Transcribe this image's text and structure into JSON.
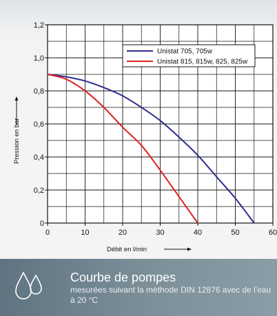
{
  "chart_data": {
    "type": "line",
    "xlabel": "Débit en l/min",
    "ylabel": "Pression en bar",
    "xlim": [
      0,
      60
    ],
    "ylim": [
      0,
      1.2
    ],
    "x_ticks": [
      "0",
      "10",
      "20",
      "30",
      "40",
      "50",
      "60"
    ],
    "y_ticks": [
      "0",
      "0,2",
      "0,4",
      "0,6",
      "0,8",
      "1,0",
      "1,2"
    ],
    "grid": true,
    "legend_position": "top-right",
    "series": [
      {
        "name": "Unistat 705, 705w",
        "color": "#2b2d8f",
        "x": [
          0,
          5,
          10,
          15,
          20,
          25,
          30,
          35,
          40,
          45,
          50,
          55
        ],
        "y": [
          0.9,
          0.885,
          0.86,
          0.82,
          0.77,
          0.7,
          0.62,
          0.52,
          0.41,
          0.28,
          0.15,
          0.0
        ]
      },
      {
        "name": "Unistat 815, 815w, 825, 825w",
        "color": "#e02020",
        "x": [
          0,
          5,
          10,
          15,
          20,
          25,
          30,
          35,
          40
        ],
        "y": [
          0.9,
          0.87,
          0.8,
          0.7,
          0.58,
          0.47,
          0.32,
          0.16,
          0.0
        ]
      }
    ]
  },
  "caption": {
    "title": "Courbe de pompes",
    "subtitle": "mesurées suivant la méthode DIN 12876 avec de l'eau à 20 °C",
    "icon": "water-drops-icon"
  }
}
